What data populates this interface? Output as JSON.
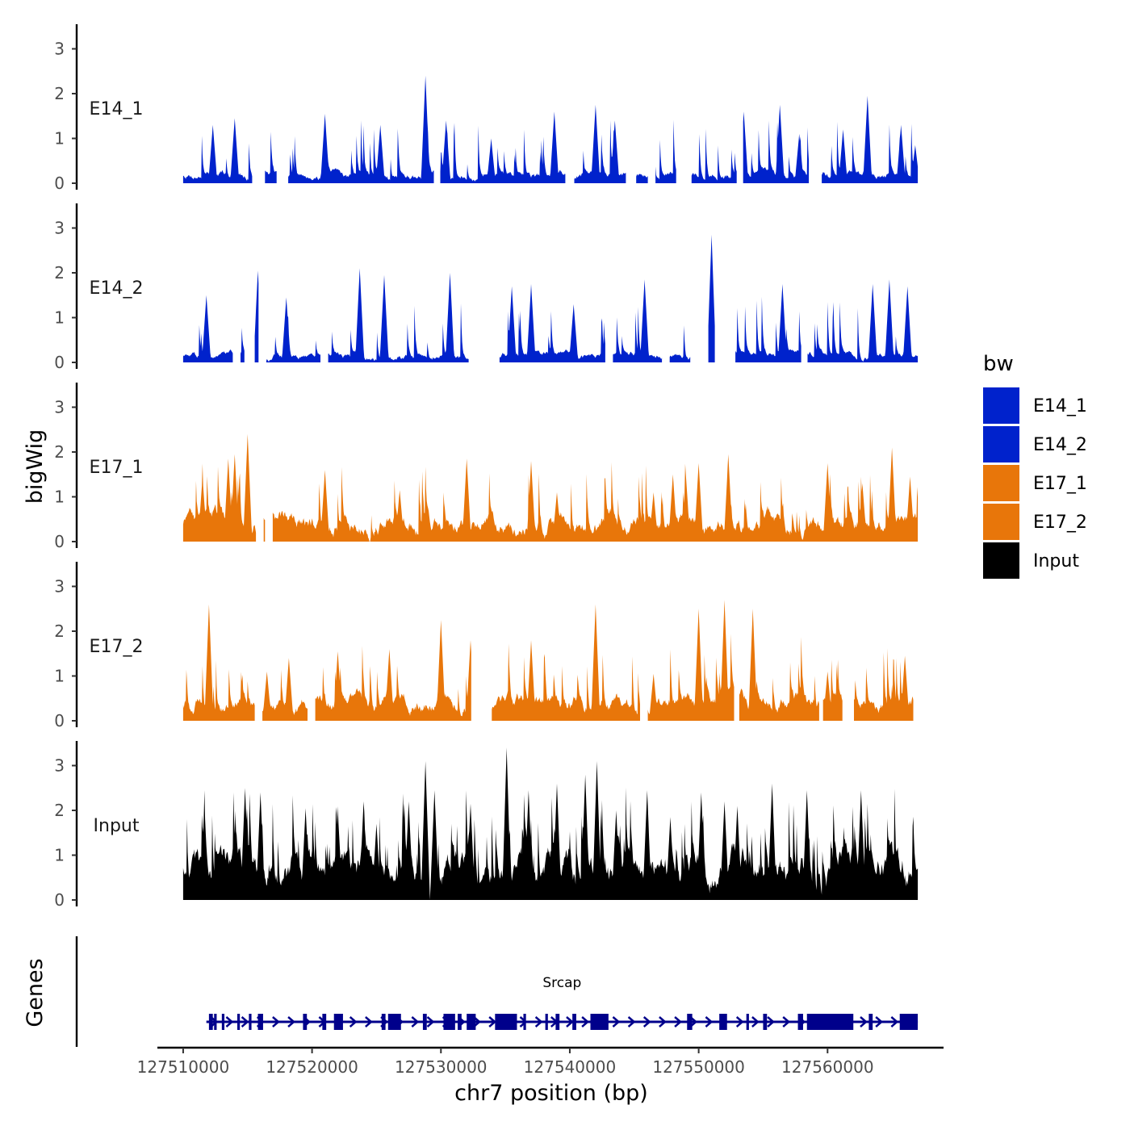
{
  "chart_data": {
    "type": "area",
    "title": "",
    "ylabel": "bigWig",
    "xlabel": "chr7 position (bp)",
    "genes_label": "Genes",
    "xlim": [
      127508000,
      127569000
    ],
    "ylim": [
      0,
      3.5
    ],
    "y_ticks": [
      0,
      1,
      2,
      3
    ],
    "x_ticks": [
      127510000,
      127520000,
      127530000,
      127540000,
      127550000,
      127560000
    ],
    "x_tick_labels": [
      "127510000",
      "127520000",
      "127530000",
      "127540000",
      "127550000",
      "127560000"
    ],
    "data_range": [
      127510000,
      127567000
    ],
    "legend": {
      "title": "bw",
      "position": "right",
      "entries": [
        {
          "label": "E14_1",
          "color": "#0022CC"
        },
        {
          "label": "E14_2",
          "color": "#0022CC"
        },
        {
          "label": "E17_1",
          "color": "#E8760A"
        },
        {
          "label": "E17_2",
          "color": "#E8760A"
        },
        {
          "label": "Input",
          "color": "#000000"
        }
      ]
    },
    "series": [
      {
        "name": "E14_1",
        "color": "#0022CC",
        "peaks": [
          [
            127512300,
            1.3
          ],
          [
            127514000,
            1.45
          ],
          [
            127521000,
            1.55
          ],
          [
            127525300,
            1.3
          ],
          [
            127528800,
            2.4
          ],
          [
            127530400,
            1.4
          ],
          [
            127533900,
            1.0
          ],
          [
            127538800,
            1.6
          ],
          [
            127542000,
            1.75
          ],
          [
            127543500,
            1.4
          ],
          [
            127546400,
            1.3
          ],
          [
            127553500,
            1.6
          ],
          [
            127556300,
            1.75
          ],
          [
            127557800,
            1.1
          ],
          [
            127561200,
            1.2
          ],
          [
            127563100,
            1.95
          ],
          [
            127565700,
            1.3
          ],
          [
            127566800,
            0.85
          ]
        ],
        "gaps": [
          [
            127515400,
            127516300
          ],
          [
            127517300,
            127518100
          ],
          [
            127529500,
            127529900
          ],
          [
            127539700,
            127540300
          ],
          [
            127544400,
            127545100
          ],
          [
            127546100,
            127546600
          ],
          [
            127548300,
            127549400
          ],
          [
            127553000,
            127553400
          ],
          [
            127558600,
            127559500
          ]
        ]
      },
      {
        "name": "E14_2",
        "color": "#0022CC",
        "peaks": [
          [
            127511800,
            1.5
          ],
          [
            127515800,
            2.05
          ],
          [
            127518000,
            1.45
          ],
          [
            127523700,
            2.1
          ],
          [
            127525600,
            1.95
          ],
          [
            127530700,
            2.0
          ],
          [
            127535500,
            1.7
          ],
          [
            127537000,
            1.75
          ],
          [
            127540300,
            1.3
          ],
          [
            127545800,
            1.85
          ],
          [
            127551000,
            2.85
          ],
          [
            127556500,
            1.75
          ],
          [
            127563500,
            1.75
          ],
          [
            127564800,
            1.85
          ],
          [
            127566200,
            1.7
          ]
        ],
        "gaps": [
          [
            127513900,
            127514400
          ],
          [
            127514800,
            127515500
          ],
          [
            127515900,
            127516400
          ],
          [
            127520700,
            127521200
          ],
          [
            127532200,
            127534500
          ],
          [
            127542800,
            127543300
          ],
          [
            127547200,
            127547700
          ],
          [
            127549400,
            127550700
          ],
          [
            127551300,
            127552800
          ],
          [
            127558000,
            127558400
          ]
        ]
      },
      {
        "name": "E17_1",
        "color": "#E8760A",
        "peaks": [
          [
            127511500,
            1.45
          ],
          [
            127513500,
            1.85
          ],
          [
            127514000,
            1.95
          ],
          [
            127515000,
            2.4
          ],
          [
            127521000,
            1.6
          ],
          [
            127526800,
            1.15
          ],
          [
            127532000,
            1.85
          ],
          [
            127537000,
            1.8
          ],
          [
            127539000,
            1.1
          ],
          [
            127546500,
            1.1
          ],
          [
            127548000,
            1.5
          ],
          [
            127549000,
            1.5
          ],
          [
            127550000,
            1.75
          ],
          [
            127552300,
            1.95
          ],
          [
            127560000,
            1.75
          ],
          [
            127562700,
            1.3
          ],
          [
            127565000,
            2.1
          ],
          [
            127566400,
            1.45
          ]
        ],
        "gaps": [
          [
            127515700,
            127516200
          ],
          [
            127516400,
            127516900
          ]
        ]
      },
      {
        "name": "E17_2",
        "color": "#E8760A",
        "peaks": [
          [
            127512000,
            2.6
          ],
          [
            127516500,
            1.1
          ],
          [
            127518200,
            1.4
          ],
          [
            127522000,
            1.55
          ],
          [
            127526000,
            1.6
          ],
          [
            127530000,
            2.25
          ],
          [
            127532300,
            1.8
          ],
          [
            127537000,
            1.8
          ],
          [
            127542000,
            2.6
          ],
          [
            127546500,
            1.05
          ],
          [
            127550000,
            2.5
          ],
          [
            127552000,
            2.7
          ],
          [
            127554200,
            2.5
          ],
          [
            127560000,
            1.1
          ],
          [
            127566000,
            1.45
          ]
        ],
        "gaps": [
          [
            127515600,
            127516100
          ],
          [
            127519700,
            127520200
          ],
          [
            127532400,
            127533900
          ],
          [
            127545500,
            127546000
          ],
          [
            127552800,
            127553100
          ],
          [
            127559400,
            127559600
          ],
          [
            127561200,
            127562000
          ],
          [
            127566700,
            127567000
          ]
        ]
      },
      {
        "name": "Input",
        "color": "#000000",
        "peaks": [
          [
            127514800,
            2.5
          ],
          [
            127516000,
            2.4
          ],
          [
            127519500,
            2.05
          ],
          [
            127524000,
            2.2
          ],
          [
            127525000,
            1.7
          ],
          [
            127527500,
            2.2
          ],
          [
            127528800,
            3.1
          ],
          [
            127529500,
            2.45
          ],
          [
            127532300,
            2.15
          ],
          [
            127535100,
            3.4
          ],
          [
            127536800,
            2.45
          ],
          [
            127539000,
            2.6
          ],
          [
            127541200,
            2.8
          ],
          [
            127542100,
            3.1
          ],
          [
            127543600,
            2.0
          ],
          [
            127546000,
            2.45
          ],
          [
            127547800,
            1.85
          ],
          [
            127550200,
            2.4
          ],
          [
            127552000,
            2.2
          ],
          [
            127553000,
            2.1
          ],
          [
            127555700,
            2.6
          ],
          [
            127558400,
            2.45
          ],
          [
            127562600,
            2.45
          ]
        ],
        "gaps": []
      }
    ],
    "genes": [
      {
        "name": "Srcap",
        "start": 127511800,
        "end": 127567000,
        "strand": "+",
        "color": "#00008B",
        "exons": [
          [
            127512000,
            127512300
          ],
          [
            127512400,
            127512600
          ],
          [
            127513000,
            127513200
          ],
          [
            127514200,
            127514400
          ],
          [
            127515100,
            127515300
          ],
          [
            127515800,
            127516200
          ],
          [
            127519300,
            127519600
          ],
          [
            127520800,
            127521100
          ],
          [
            127521700,
            127522400
          ],
          [
            127525400,
            127525700
          ],
          [
            127525900,
            127526900
          ],
          [
            127528600,
            127528900
          ],
          [
            127530200,
            127531100
          ],
          [
            127531300,
            127531600
          ],
          [
            127532000,
            127532700
          ],
          [
            127534200,
            127535900
          ],
          [
            127536400,
            127536600
          ],
          [
            127538100,
            127538300
          ],
          [
            127538900,
            127539200
          ],
          [
            127540200,
            127540500
          ],
          [
            127541600,
            127543000
          ],
          [
            127549100,
            127549500
          ],
          [
            127551600,
            127552200
          ],
          [
            127553700,
            127553900
          ],
          [
            127555000,
            127555300
          ],
          [
            127557700,
            127558100
          ],
          [
            127558400,
            127562000
          ],
          [
            127563200,
            127563500
          ],
          [
            127565600,
            127567000
          ]
        ]
      }
    ]
  }
}
